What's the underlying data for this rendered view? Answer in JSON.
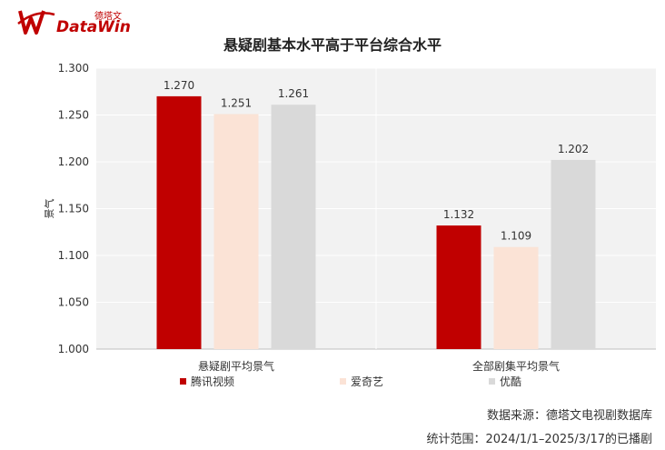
{
  "logo": {
    "brand_text": "DataWin",
    "cn_text": "德塔文"
  },
  "chart_data": {
    "type": "bar",
    "title": "悬疑剧基本水平高于平台综合水平",
    "ylabel": "景气",
    "ylim": [
      1.0,
      1.3
    ],
    "yticks": [
      "1.000",
      "1.050",
      "1.100",
      "1.150",
      "1.200",
      "1.250",
      "1.300"
    ],
    "categories": [
      "悬疑剧平均景气",
      "全部剧集平均景气"
    ],
    "series": [
      {
        "name": "腾讯视频",
        "color": "#c00000",
        "values": [
          1.27,
          1.132
        ],
        "labels": [
          "1.270",
          "1.132"
        ]
      },
      {
        "name": "爱奇艺",
        "color": "#fbe3d6",
        "values": [
          1.251,
          1.109
        ],
        "labels": [
          "1.251",
          "1.109"
        ]
      },
      {
        "name": "优酷",
        "color": "#d9d9d9",
        "values": [
          1.261,
          1.202
        ],
        "labels": [
          "1.261",
          "1.202"
        ]
      }
    ],
    "grid": true,
    "legend_position": "bottom"
  },
  "footer": {
    "source": "数据来源：德塔文电视剧数据库",
    "range": "统计范围：2024/1/1–2025/3/17的已播剧"
  }
}
